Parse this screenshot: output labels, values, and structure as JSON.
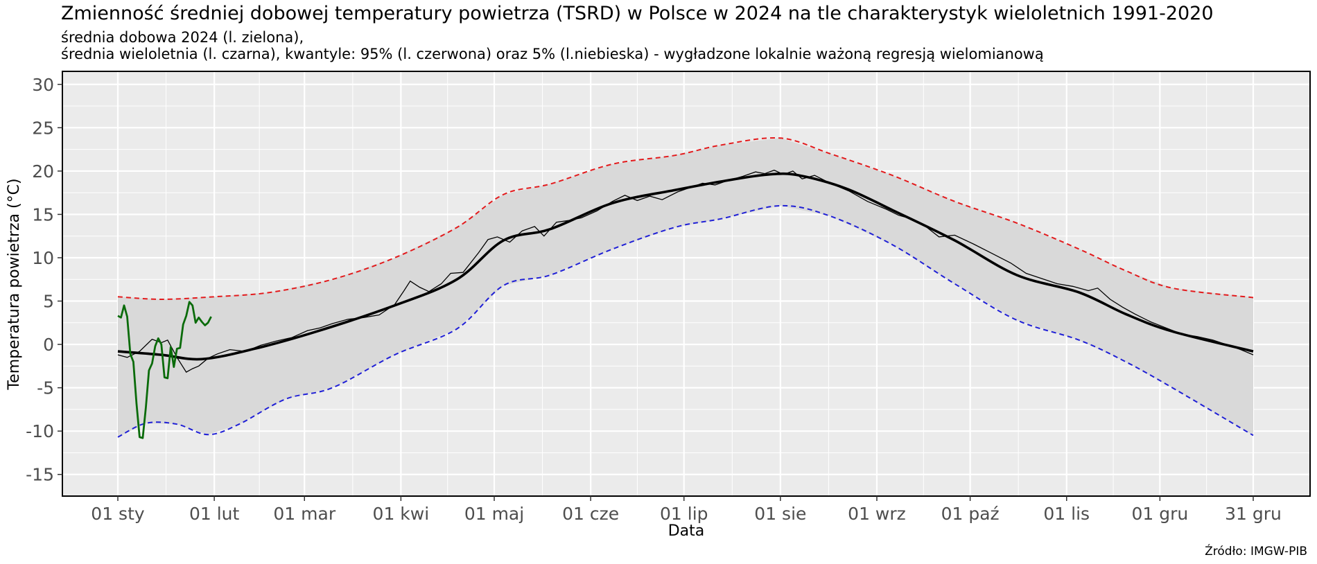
{
  "chart_data": {
    "type": "line",
    "title": "Zmienność średniej dobowej temperatury powietrza (TSRD) w Polsce w 2024 na tle charakterystyk wieloletnich 1991-2020",
    "subtitle_line1": "średnia dobowa 2024 (l. zielona),",
    "subtitle_line2": "średnia wieloletnia (l. czarna), kwantyle: 95% (l. czerwona) oraz 5% (l.niebieska) - wygładzone lokalnie ważoną regresją wielomianową",
    "xlabel": "Data",
    "ylabel": "Temperatura powietrza (°C)",
    "source": "Źródło: IMGW-PIB",
    "x_unit": "day_of_year",
    "xlim": [
      1,
      366
    ],
    "ylim": [
      -17.5,
      31.5
    ],
    "y_ticks": [
      -15,
      -10,
      -5,
      0,
      5,
      10,
      15,
      20,
      25,
      30
    ],
    "x_ticks": [
      {
        "day": 1,
        "label": "01 sty"
      },
      {
        "day": 32,
        "label": "01 lut"
      },
      {
        "day": 61,
        "label": "01 mar"
      },
      {
        "day": 92,
        "label": "01 kwi"
      },
      {
        "day": 122,
        "label": "01 maj"
      },
      {
        "day": 153,
        "label": "01 cze"
      },
      {
        "day": 183,
        "label": "01 lip"
      },
      {
        "day": 214,
        "label": "01 sie"
      },
      {
        "day": 245,
        "label": "01 wrz"
      },
      {
        "day": 275,
        "label": "01 paź"
      },
      {
        "day": 306,
        "label": "01 lis"
      },
      {
        "day": 336,
        "label": "01 gru"
      },
      {
        "day": 366,
        "label": "31 gru"
      }
    ],
    "grid": true,
    "colors": {
      "panel_bg": "#ebebeb",
      "grid": "#ffffff",
      "band": "#d9d9d9",
      "mean": "#000000",
      "q95": "#e31a1c",
      "q05": "#1f1fd6",
      "obs2024": "#0a6b0a"
    },
    "series": [
      {
        "key": "q95",
        "style": "dashed",
        "x": [
          1,
          15,
          32,
          50,
          70,
          90,
          110,
          125,
          140,
          160,
          180,
          195,
          214,
          230,
          250,
          270,
          290,
          310,
          325,
          340,
          366
        ],
        "y": [
          5.5,
          5.2,
          5.5,
          6.0,
          7.5,
          10.0,
          13.5,
          17.3,
          18.5,
          20.8,
          21.8,
          23.0,
          23.8,
          22.0,
          19.5,
          16.5,
          14.0,
          11.0,
          8.5,
          6.5,
          5.4
        ]
      },
      {
        "key": "q05",
        "style": "dashed",
        "x": [
          1,
          10,
          20,
          30,
          40,
          55,
          70,
          90,
          110,
          125,
          140,
          160,
          180,
          195,
          214,
          230,
          250,
          270,
          290,
          310,
          325,
          340,
          366
        ],
        "y": [
          -10.7,
          -9.1,
          -9.2,
          -10.4,
          -9.2,
          -6.3,
          -5.0,
          -1.2,
          1.8,
          6.8,
          8.0,
          11.0,
          13.5,
          14.5,
          16.0,
          14.8,
          11.5,
          7.0,
          2.8,
          0.5,
          -2.0,
          -5.0,
          -10.5
        ]
      },
      {
        "key": "mean_smooth",
        "style": "thick",
        "x": [
          1,
          15,
          28,
          45,
          65,
          90,
          110,
          125,
          140,
          160,
          180,
          195,
          210,
          220,
          235,
          250,
          270,
          290,
          310,
          325,
          340,
          366
        ],
        "y": [
          -0.8,
          -1.2,
          -1.7,
          -0.5,
          1.5,
          4.5,
          7.5,
          12.0,
          13.3,
          16.3,
          17.8,
          18.8,
          19.6,
          19.5,
          18.0,
          15.5,
          12.0,
          8.0,
          6.0,
          3.5,
          1.5,
          -0.8
        ]
      },
      {
        "key": "mean_daily",
        "style": "thin",
        "x": [
          1,
          4,
          8,
          12,
          15,
          17,
          20,
          23,
          25,
          27,
          30,
          33,
          37,
          42,
          47,
          52,
          57,
          62,
          66,
          70,
          75,
          80,
          85,
          90,
          93,
          95,
          98,
          101,
          105,
          108,
          112,
          117,
          120,
          123,
          127,
          131,
          135,
          138,
          142,
          146,
          150,
          155,
          160,
          164,
          168,
          172,
          176,
          181,
          185,
          189,
          193,
          197,
          202,
          206,
          209,
          212,
          215,
          218,
          221,
          225,
          230,
          236,
          242,
          248,
          252,
          256,
          260,
          265,
          270,
          276,
          282,
          288,
          293,
          298,
          303,
          308,
          313,
          316,
          320,
          324,
          328,
          333,
          338,
          343,
          348,
          353,
          358,
          362,
          366
        ],
        "y": [
          -1.2,
          -1.5,
          -0.8,
          0.6,
          0.2,
          0.5,
          -1.5,
          -3.2,
          -2.8,
          -2.5,
          -1.6,
          -1.1,
          -0.6,
          -0.8,
          -0.1,
          0.4,
          0.8,
          1.6,
          1.9,
          2.4,
          2.9,
          3.1,
          3.4,
          4.6,
          6.2,
          7.3,
          6.6,
          6.1,
          7.0,
          8.2,
          8.3,
          10.6,
          12.1,
          12.4,
          11.8,
          13.1,
          13.6,
          12.5,
          14.1,
          14.3,
          14.6,
          15.4,
          16.5,
          17.2,
          16.6,
          17.1,
          16.7,
          17.6,
          18.1,
          18.6,
          18.4,
          18.9,
          19.4,
          19.9,
          19.7,
          20.1,
          19.6,
          20.0,
          19.1,
          19.5,
          18.6,
          17.7,
          16.5,
          15.6,
          14.9,
          14.5,
          13.8,
          12.4,
          12.6,
          11.6,
          10.5,
          9.4,
          8.2,
          7.6,
          7.0,
          6.7,
          6.2,
          6.5,
          5.2,
          4.3,
          3.5,
          2.6,
          1.9,
          1.2,
          0.9,
          0.5,
          -0.1,
          -0.6,
          -1.2
        ]
      },
      {
        "key": "obs2024",
        "style": "solid",
        "x": [
          1,
          2,
          3,
          4,
          5,
          6,
          7,
          8,
          9,
          10,
          11,
          12,
          13,
          14,
          15,
          16,
          17,
          18,
          19,
          20,
          21,
          22,
          23,
          24,
          25,
          26,
          27,
          28,
          29,
          30,
          31
        ],
        "y": [
          3.3,
          3.1,
          4.5,
          3.2,
          -1.1,
          -2.0,
          -6.8,
          -10.7,
          -10.8,
          -7.3,
          -3.0,
          -2.2,
          -0.2,
          0.7,
          0.0,
          -3.8,
          -3.9,
          -0.3,
          -2.6,
          -0.5,
          -0.4,
          2.3,
          3.3,
          4.9,
          4.5,
          2.5,
          3.1,
          2.6,
          2.2,
          2.5,
          3.2
        ]
      }
    ]
  }
}
